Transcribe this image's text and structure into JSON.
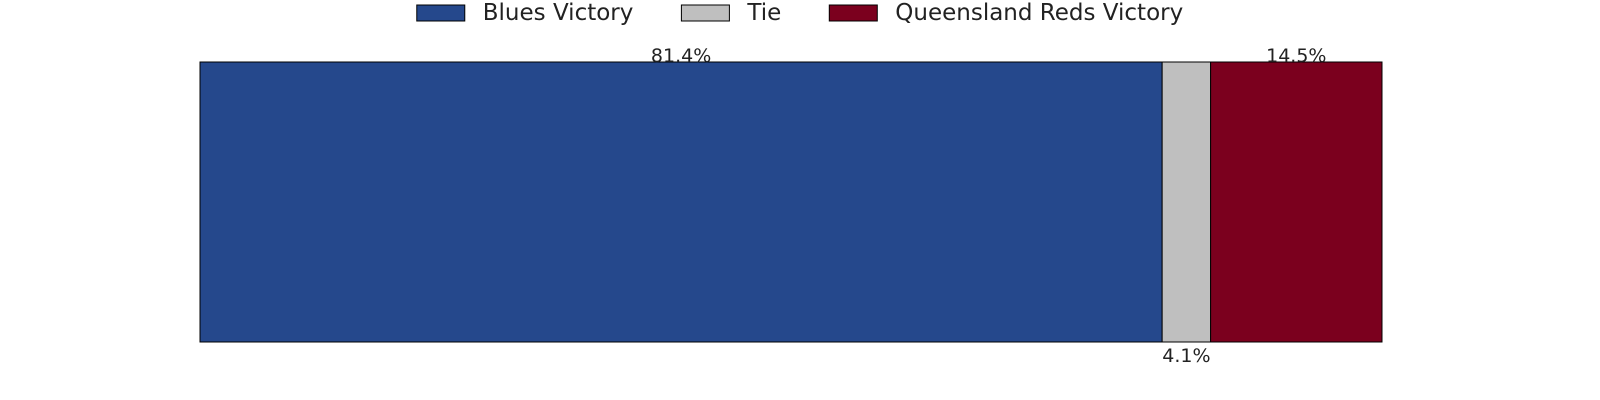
{
  "chart_data": {
    "type": "bar",
    "orientation": "horizontal",
    "stacked": true,
    "normalized_percent": true,
    "categories": [
      ""
    ],
    "series": [
      {
        "name": "Blues Victory",
        "values": [
          81.4
        ],
        "label": "81.4%",
        "color": "#25488c"
      },
      {
        "name": "Tie",
        "values": [
          4.1
        ],
        "label": "4.1%",
        "color": "#bfbfbf"
      },
      {
        "name": "Queensland Reds Victory",
        "values": [
          14.5
        ],
        "label": "14.5%",
        "color": "#7b001e"
      }
    ],
    "xlim": [
      0,
      100
    ],
    "title": "",
    "xlabel": "",
    "ylabel": "",
    "grid": false,
    "axes_visible": false,
    "legend": {
      "placement": "top-center"
    }
  }
}
